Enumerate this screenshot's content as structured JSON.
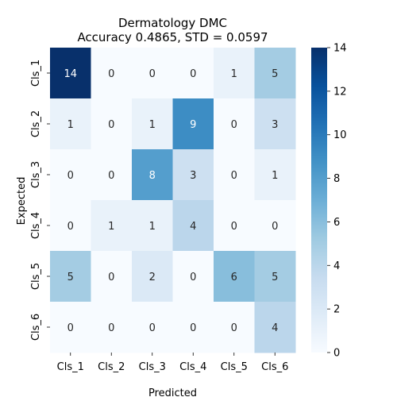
{
  "chart_data": {
    "type": "heatmap",
    "title_lines": [
      "Dermatology DMC",
      "Accuracy 0.4865, STD = 0.0597"
    ],
    "xlabel": "Predicted",
    "ylabel": "Expected",
    "x_categories": [
      "Cls_1",
      "Cls_2",
      "Cls_3",
      "Cls_4",
      "Cls_5",
      "Cls_6"
    ],
    "y_categories": [
      "Cls_1",
      "Cls_2",
      "Cls_3",
      "Cls_4",
      "Cls_5",
      "Cls_6"
    ],
    "matrix": [
      [
        14,
        0,
        0,
        0,
        1,
        5
      ],
      [
        1,
        0,
        1,
        9,
        0,
        3
      ],
      [
        0,
        0,
        8,
        3,
        0,
        1
      ],
      [
        0,
        1,
        1,
        4,
        0,
        0
      ],
      [
        5,
        0,
        2,
        0,
        6,
        5
      ],
      [
        0,
        0,
        0,
        0,
        0,
        4
      ]
    ],
    "color_range": [
      0,
      14
    ],
    "colorbar_ticks": [
      0,
      2,
      4,
      6,
      8,
      10,
      12,
      14
    ],
    "colormap": "Blues",
    "color_low": "#f7fbff",
    "color_high": "#08306b",
    "annotation_dark_text": "#262626",
    "annotation_light_text": "#ffffff"
  }
}
